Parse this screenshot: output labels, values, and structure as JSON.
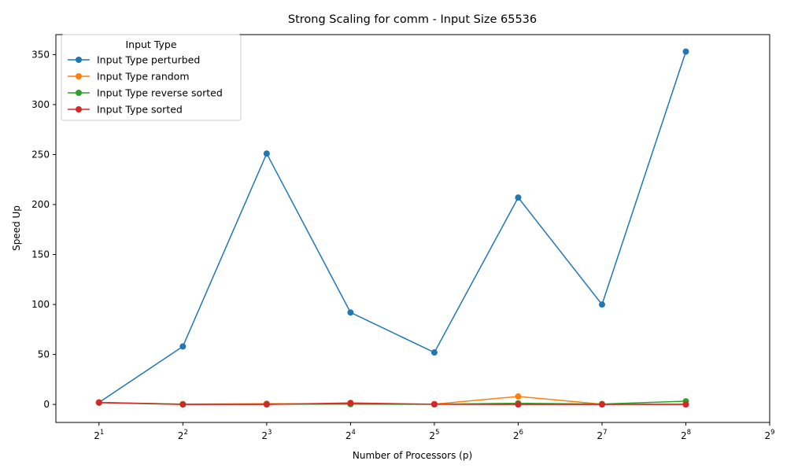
{
  "chart_data": {
    "type": "line",
    "title": "Strong Scaling for comm - Input Size 65536",
    "xlabel": "Number of Processors (p)",
    "ylabel": "Speed Up",
    "x_scale": "log2",
    "x": [
      2,
      4,
      8,
      16,
      32,
      64,
      128,
      256
    ],
    "xticks": [
      {
        "base": "2",
        "exp": "1"
      },
      {
        "base": "2",
        "exp": "2"
      },
      {
        "base": "2",
        "exp": "3"
      },
      {
        "base": "2",
        "exp": "4"
      },
      {
        "base": "2",
        "exp": "5"
      },
      {
        "base": "2",
        "exp": "6"
      },
      {
        "base": "2",
        "exp": "7"
      },
      {
        "base": "2",
        "exp": "8"
      },
      {
        "base": "2",
        "exp": "9"
      }
    ],
    "xtick_values": [
      2,
      4,
      8,
      16,
      32,
      64,
      128,
      256,
      512
    ],
    "xlim": [
      1.4,
      512
    ],
    "ylim": [
      -18,
      370
    ],
    "yticks": [
      0,
      50,
      100,
      150,
      200,
      250,
      300,
      350
    ],
    "grid": false,
    "legend": {
      "title": "Input Type",
      "placement": "top-left"
    },
    "series": [
      {
        "name": "Input Type perturbed",
        "color": "#1f77b4",
        "values": [
          2,
          58,
          251,
          92,
          52,
          207,
          100,
          353
        ]
      },
      {
        "name": "Input Type random",
        "color": "#ff7f0e",
        "values": [
          2,
          0.3,
          0.8,
          0.5,
          0.3,
          8,
          0.3,
          0.4
        ]
      },
      {
        "name": "Input Type reverse sorted",
        "color": "#2ca02c",
        "values": [
          2,
          0.2,
          0.3,
          0.3,
          0.2,
          1.2,
          0.4,
          3.2
        ]
      },
      {
        "name": "Input Type sorted",
        "color": "#d62728",
        "values": [
          1.8,
          0,
          0,
          1.5,
          0.2,
          0,
          0,
          0
        ]
      }
    ]
  }
}
